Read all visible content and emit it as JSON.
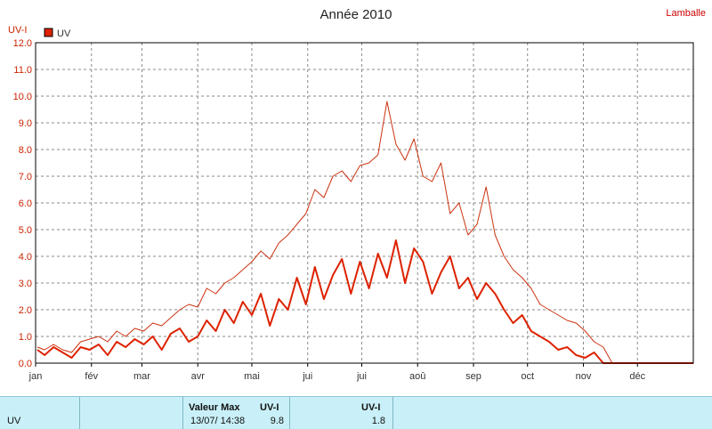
{
  "header": {
    "title": "Année 2010",
    "location": "Lamballe"
  },
  "colors": {
    "main_line": "#dd2200",
    "max_line": "#cc3311",
    "grid": "#8a8a8a",
    "axis": "#000000",
    "summary_bg": "#c9f0f8"
  },
  "chart_data": {
    "type": "line",
    "title": "Année 2010",
    "ylabel": "UV-I",
    "ylim": [
      0,
      12
    ],
    "ytick_labels": [
      "0.0",
      "1.0",
      "2.0",
      "3.0",
      "4.0",
      "5.0",
      "6.0",
      "7.0",
      "8.0",
      "9.0",
      "10.0",
      "11.0",
      "12.0"
    ],
    "xlim": [
      0,
      365
    ],
    "month_labels": [
      "jan",
      "fév",
      "mar",
      "avr",
      "mai",
      "jui",
      "jui",
      "aoû",
      "sep",
      "oct",
      "nov",
      "déc"
    ],
    "month_starts": [
      0,
      31,
      59,
      90,
      120,
      151,
      181,
      212,
      243,
      273,
      304,
      334
    ],
    "grid": true,
    "legend": {
      "position": "top-left",
      "entries": [
        {
          "name": "UV",
          "color": "#dd2200"
        }
      ]
    },
    "series": [
      {
        "name": "UV",
        "style": "thick",
        "x": [
          1,
          5,
          10,
          15,
          20,
          25,
          30,
          35,
          40,
          45,
          50,
          55,
          60,
          65,
          70,
          75,
          80,
          85,
          90,
          95,
          100,
          105,
          110,
          115,
          120,
          125,
          130,
          135,
          140,
          145,
          150,
          155,
          160,
          165,
          170,
          175,
          180,
          185,
          190,
          195,
          200,
          205,
          210,
          215,
          220,
          225,
          230,
          235,
          240,
          245,
          250,
          255,
          260,
          265,
          270,
          275,
          280,
          285,
          290,
          295,
          300,
          305,
          310,
          315,
          320,
          325,
          330,
          335,
          340,
          345,
          350,
          355,
          360,
          365
        ],
        "values": [
          0.5,
          0.3,
          0.6,
          0.4,
          0.2,
          0.6,
          0.5,
          0.7,
          0.3,
          0.8,
          0.6,
          0.9,
          0.7,
          1.0,
          0.5,
          1.1,
          1.3,
          0.8,
          1.0,
          1.6,
          1.2,
          2.0,
          1.5,
          2.3,
          1.8,
          2.6,
          1.4,
          2.4,
          2.0,
          3.2,
          2.2,
          3.6,
          2.4,
          3.3,
          3.9,
          2.6,
          3.8,
          2.8,
          4.1,
          3.2,
          4.6,
          3.0,
          4.3,
          3.8,
          2.6,
          3.4,
          4.0,
          2.8,
          3.2,
          2.4,
          3.0,
          2.6,
          2.0,
          1.5,
          1.8,
          1.2,
          1.0,
          0.8,
          0.5,
          0.6,
          0.3,
          0.2,
          0.4,
          0.0,
          0.0,
          0.0,
          0.0,
          0.0,
          0.0,
          0.0,
          0.0,
          0.0,
          0.0,
          0.0
        ]
      },
      {
        "name": "max",
        "style": "thin",
        "x": [
          1,
          5,
          10,
          15,
          20,
          25,
          30,
          35,
          40,
          45,
          50,
          55,
          60,
          65,
          70,
          75,
          80,
          85,
          90,
          95,
          100,
          105,
          110,
          115,
          120,
          125,
          130,
          135,
          140,
          145,
          150,
          155,
          160,
          165,
          170,
          175,
          180,
          185,
          190,
          195,
          200,
          205,
          210,
          215,
          220,
          225,
          230,
          235,
          240,
          245,
          250,
          255,
          260,
          265,
          270,
          275,
          280,
          285,
          290,
          295,
          300,
          305,
          310,
          315,
          320,
          325,
          330,
          335,
          340,
          345,
          350,
          355,
          360,
          365
        ],
        "values": [
          0.6,
          0.5,
          0.7,
          0.5,
          0.4,
          0.8,
          0.9,
          1.0,
          0.8,
          1.2,
          1.0,
          1.3,
          1.2,
          1.5,
          1.4,
          1.7,
          2.0,
          2.2,
          2.1,
          2.8,
          2.6,
          3.0,
          3.2,
          3.5,
          3.8,
          4.2,
          3.9,
          4.5,
          4.8,
          5.2,
          5.6,
          6.5,
          6.2,
          7.0,
          7.2,
          6.8,
          7.4,
          7.5,
          7.8,
          9.8,
          8.2,
          7.6,
          8.4,
          7.0,
          6.8,
          7.5,
          5.6,
          6.0,
          4.8,
          5.2,
          6.6,
          4.8,
          4.0,
          3.5,
          3.2,
          2.8,
          2.2,
          2.0,
          1.8,
          1.6,
          1.5,
          1.2,
          0.8,
          0.6,
          0.0,
          0.0,
          0.0,
          0.0,
          0.0,
          0.0,
          0.0,
          0.0,
          0.0,
          0.0
        ]
      }
    ]
  },
  "summary": {
    "row_label": "UV",
    "col1_header": "Valeur Max",
    "col1_value": "13/07/  14:38",
    "col2_header": "UV-I",
    "col2_value": "9.8",
    "col3_header": "UV-I",
    "col3_value": "1.8"
  }
}
